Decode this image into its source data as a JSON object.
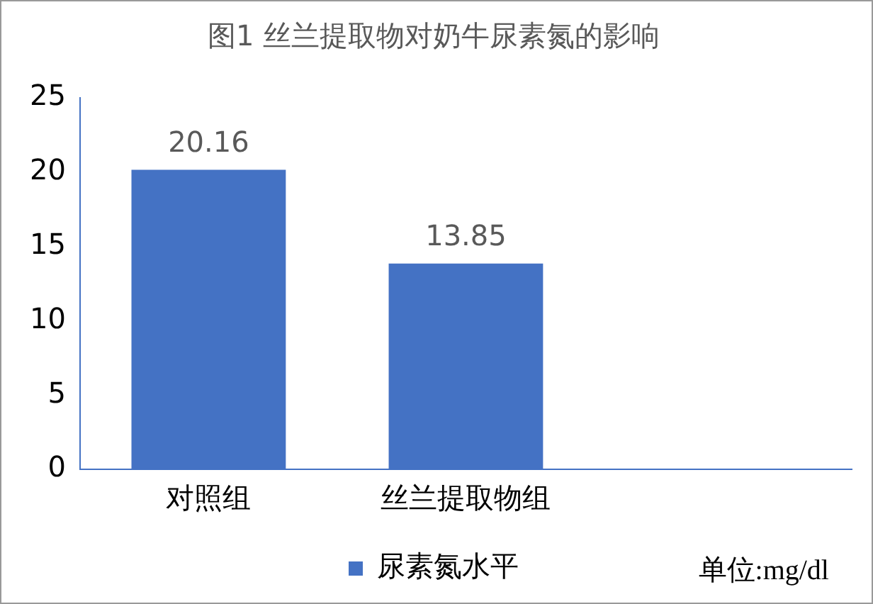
{
  "chart_data": {
    "type": "bar",
    "title": "图1 丝兰提取物对奶牛尿素氮的影响",
    "categories": [
      "对照组",
      "丝兰提取物组",
      null
    ],
    "series": [
      {
        "name": "尿素氮水平",
        "color": "#4472c4",
        "values": [
          20.16,
          13.85,
          null
        ]
      }
    ],
    "ylim": [
      0,
      25
    ],
    "yticks": [
      0,
      5,
      10,
      15,
      20,
      25
    ],
    "grid": false,
    "legend": "bottom",
    "data_labels": true,
    "annotations": [
      "单位:mg/dl"
    ]
  }
}
